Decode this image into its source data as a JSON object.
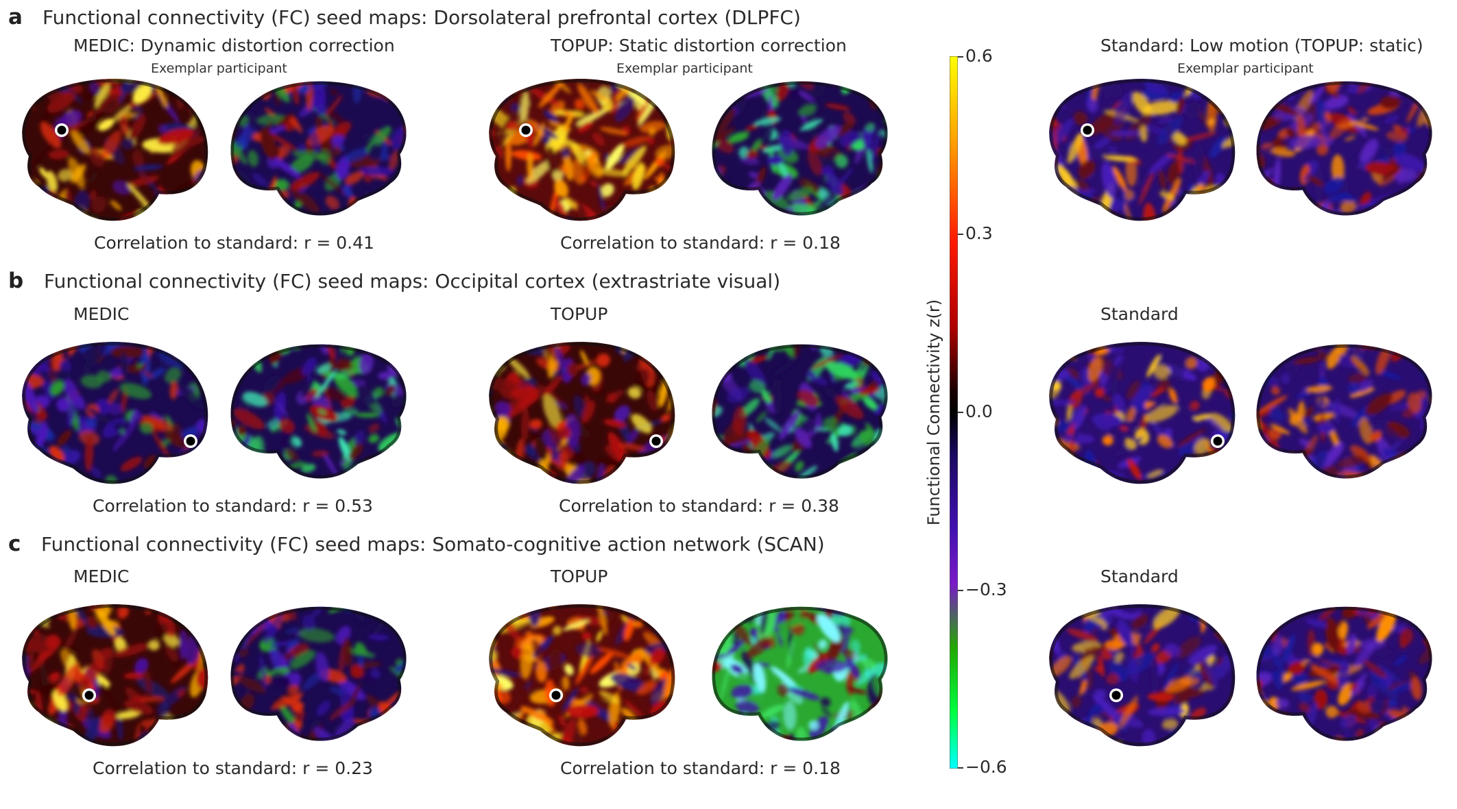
{
  "panels": [
    {
      "letter": "a",
      "title": "Functional connectivity (FC) seed maps: Dorsolateral prefrontal cortex (DLPFC)",
      "columns": [
        {
          "label": "MEDIC: Dynamic distortion correction",
          "sublabel": "Exemplar participant",
          "correlation": "Correlation to standard: r = 0.41"
        },
        {
          "label": "TOPUP: Static distortion correction",
          "sublabel": "Exemplar participant",
          "correlation": "Correlation to standard: r = 0.18"
        },
        {
          "label": "Standard: Low motion (TOPUP: static)",
          "sublabel": "Exemplar participant",
          "correlation": ""
        }
      ]
    },
    {
      "letter": "b",
      "title": "Functional connectivity (FC) seed maps: Occipital cortex (extrastriate visual)",
      "columns": [
        {
          "label": "MEDIC",
          "sublabel": "",
          "correlation": "Correlation to standard: r = 0.53"
        },
        {
          "label": "TOPUP",
          "sublabel": "",
          "correlation": "Correlation to standard: r = 0.38"
        },
        {
          "label": "Standard",
          "sublabel": "",
          "correlation": ""
        }
      ]
    },
    {
      "letter": "c",
      "title": "Functional connectivity (FC) seed maps: Somato-cognitive action network (SCAN)",
      "columns": [
        {
          "label": "MEDIC",
          "sublabel": "",
          "correlation": "Correlation to standard: r = 0.23"
        },
        {
          "label": "TOPUP",
          "sublabel": "",
          "correlation": "Correlation to standard: r = 0.18"
        },
        {
          "label": "Standard",
          "sublabel": "",
          "correlation": ""
        }
      ]
    }
  ],
  "colorbar": {
    "label": "Functional Connectivity z(r)",
    "ticks": [
      "0.6",
      "0.3",
      "0.0",
      "−0.3",
      "−0.6"
    ],
    "colors": [
      "#ffff00",
      "#ffa000",
      "#ff1a00",
      "#b00000",
      "#1a0000",
      "#000000",
      "#1a0a60",
      "#4010b0",
      "#7a1ac8",
      "#22a800",
      "#00ff40",
      "#00ffff"
    ]
  },
  "brain_colors": {
    "warm": [
      "#1a0505",
      "#6b0a0a",
      "#c01010",
      "#e03010",
      "#ff7a00",
      "#ffd200",
      "#ffff55"
    ],
    "cool": [
      "#220844",
      "#3a148a",
      "#5a1ab8",
      "#1f2aa8",
      "#2ec840",
      "#30e8c0"
    ]
  }
}
